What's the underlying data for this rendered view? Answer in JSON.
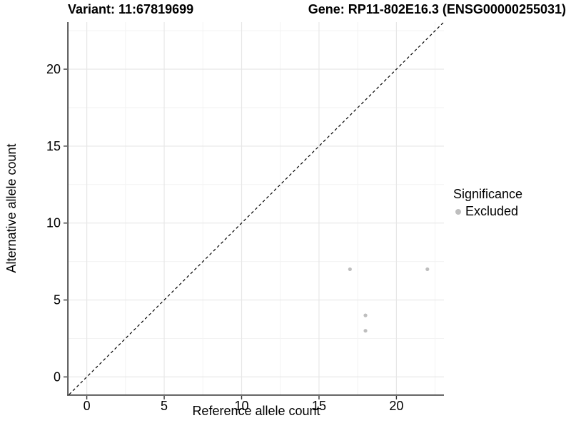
{
  "chart_data": {
    "type": "scatter",
    "title_left": "Variant: 11:67819699",
    "title_right": "Gene: RP11-802E16.3 (ENSG00000255031)",
    "xlabel": "Reference allele count",
    "ylabel": "Alternative allele count",
    "xlim": [
      -1.18,
      23.07
    ],
    "ylim": [
      -1.14,
      23.06
    ],
    "x_major_ticks": [
      0,
      5,
      10,
      15,
      20
    ],
    "y_major_ticks": [
      0,
      5,
      10,
      15,
      20
    ],
    "x_minor_gridlines": [
      2.5,
      7.5,
      12.5,
      17.5,
      22.5
    ],
    "y_minor_gridlines": [
      2.5,
      7.5,
      12.5,
      17.5,
      22.5
    ],
    "grid": "major-and-minor",
    "identity_line": {
      "type": "abline",
      "slope": 1,
      "intercept": 0,
      "style": "dashed",
      "color": "#000000"
    },
    "series": [
      {
        "name": "Excluded",
        "color": "#bebebe",
        "marker": "circle",
        "points": [
          [
            17,
            7
          ],
          [
            22,
            7
          ],
          [
            18,
            4
          ],
          [
            18,
            3
          ]
        ]
      }
    ],
    "legend": {
      "title": "Significance",
      "position": "right",
      "entries": [
        {
          "label": "Excluded",
          "color": "#bebebe"
        }
      ]
    }
  },
  "colors": {
    "background": "#ffffff",
    "grid_major": "#e7e7e7",
    "grid_minor": "#f3f3f3",
    "axis_line": "#444444",
    "tick_mark": "#333333",
    "text": "#000000",
    "point": "#bebebe"
  }
}
